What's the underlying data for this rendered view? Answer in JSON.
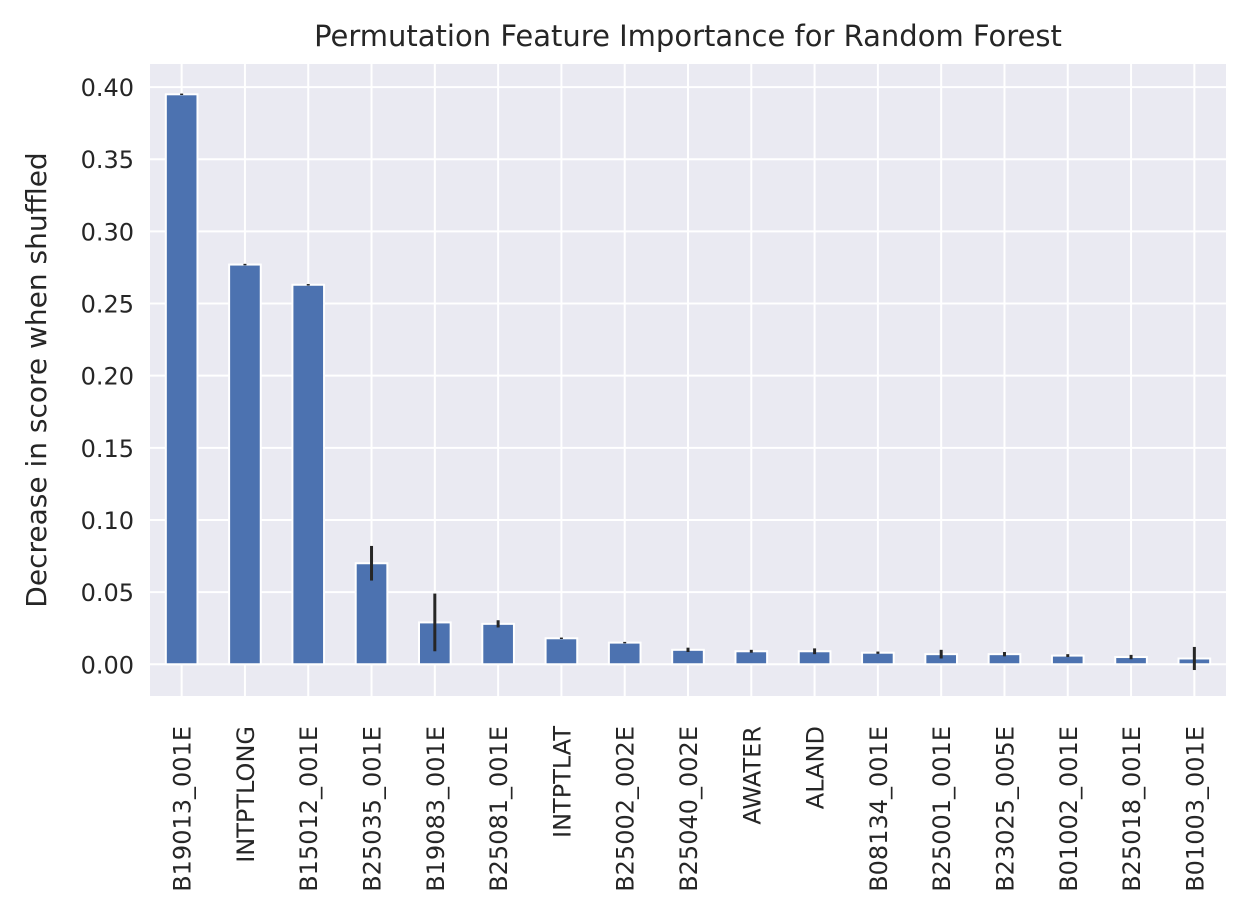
{
  "chart_data": {
    "type": "bar",
    "title": "Permutation Feature Importance for Random Forest",
    "xlabel": "",
    "ylabel": "Decrease in score when shuffled",
    "ylim": [
      -0.022,
      0.416
    ],
    "yticks": [
      0.0,
      0.05,
      0.1,
      0.15,
      0.2,
      0.25,
      0.3,
      0.35,
      0.4
    ],
    "ytick_labels": [
      "0.00",
      "0.05",
      "0.10",
      "0.15",
      "0.20",
      "0.25",
      "0.30",
      "0.35",
      "0.40"
    ],
    "grid": true,
    "colors": {
      "bar": "#4c72b0",
      "background": "#eaeaf2",
      "grid": "#ffffff",
      "errorbar": "#262626"
    },
    "categories": [
      "B19013_001E",
      "INTPTLONG",
      "B15012_001E",
      "B25035_001E",
      "B19083_001E",
      "B25081_001E",
      "INTPTLAT",
      "B25002_002E",
      "B25040_002E",
      "AWATER",
      "ALAND",
      "B08134_001E",
      "B25001_001E",
      "B23025_005E",
      "B01002_001E",
      "B25018_001E",
      "B01003_001E"
    ],
    "values": [
      0.395,
      0.277,
      0.263,
      0.07,
      0.029,
      0.028,
      0.018,
      0.015,
      0.01,
      0.009,
      0.009,
      0.008,
      0.007,
      0.007,
      0.006,
      0.005,
      0.004
    ],
    "errors": [
      0.0005,
      0.0005,
      0.0005,
      0.012,
      0.02,
      0.0025,
      0.0005,
      0.0005,
      0.0015,
      0.001,
      0.002,
      0.0008,
      0.003,
      0.0015,
      0.001,
      0.0015,
      0.008
    ]
  }
}
